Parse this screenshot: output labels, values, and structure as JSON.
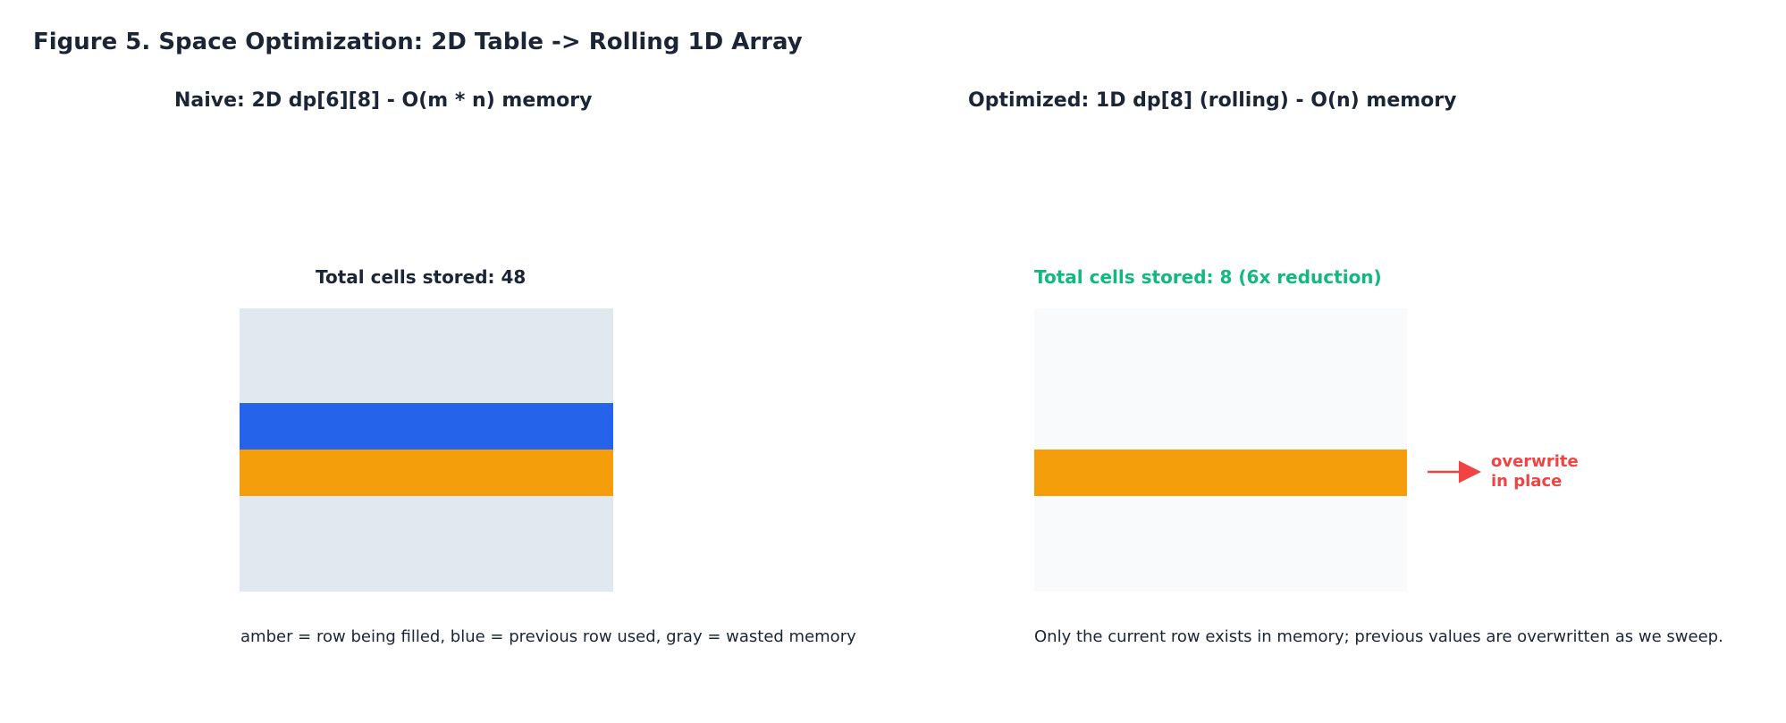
{
  "figure": {
    "title": "Figure 5. Space Optimization: 2D Table -> Rolling 1D Array"
  },
  "naive": {
    "title": "Naive: 2D dp[6][8]  -  O(m * n) memory",
    "total": "Total cells stored: 48",
    "caption": "amber = row being filled,  blue = previous row used,  gray = wasted memory",
    "rows": 6,
    "cols": 8,
    "filling_row": 3,
    "previous_row": 2
  },
  "optimized": {
    "title": "Optimized: 1D dp[8] (rolling)  -  O(n) memory",
    "total": "Total cells stored: 8  (6x reduction)",
    "caption": "Only the current row exists in memory; previous values are overwritten as we sweep.",
    "rows": 6,
    "cols": 8,
    "active_row": 3,
    "arrow_label": "overwrite\nin place"
  },
  "colors": {
    "amber": "#f59e0b",
    "blue": "#2563eb",
    "gray": "#e2e8f0",
    "faint": "#f8fafc",
    "accent_green": "#10b981",
    "accent_red": "#ef4444",
    "text": "#1b2535"
  }
}
